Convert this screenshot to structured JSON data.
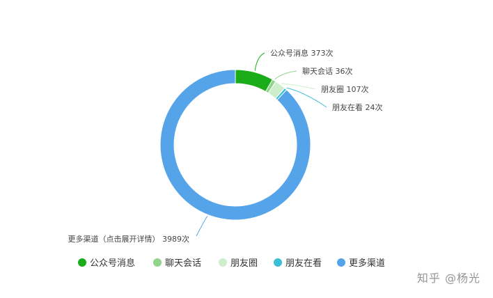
{
  "chart_data": {
    "type": "pie",
    "style": "donut",
    "categories": [
      "公众号消息",
      "聊天会话",
      "朋友圈",
      "朋友在看",
      "更多渠道"
    ],
    "values": [
      373,
      36,
      107,
      24,
      3989
    ],
    "labels": [
      "公众号消息 373次",
      "聊天会话 36次",
      "朋友圈 107次",
      "朋友在看 24次",
      "更多渠道（点击展开详情） 3989次"
    ],
    "colors": [
      "#1aad19",
      "#8fd48a",
      "#cdeecb",
      "#3bbfd7",
      "#55a4ea"
    ],
    "legend_position": "bottom"
  },
  "legend": [
    {
      "label": "公众号消息",
      "color": "#1aad19"
    },
    {
      "label": "聊天会话",
      "color": "#8fd48a"
    },
    {
      "label": "朋友圈",
      "color": "#cdeecb"
    },
    {
      "label": "朋友在看",
      "color": "#3bbfd7"
    },
    {
      "label": "更多渠道",
      "color": "#55a4ea"
    }
  ],
  "watermark": "知乎 @杨光"
}
